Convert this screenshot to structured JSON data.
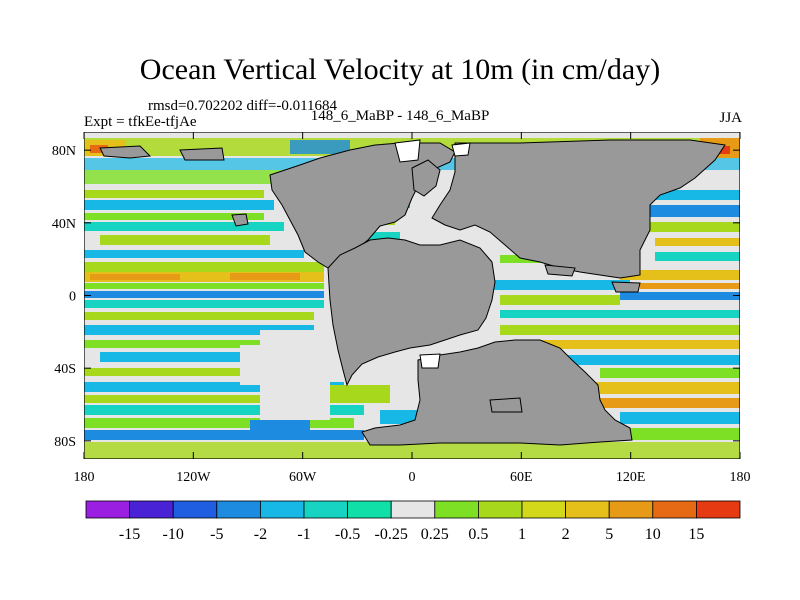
{
  "title": "Ocean Vertical Velocity at 10m (in cm/day)",
  "stats": {
    "rmsd_label": "rmsd=",
    "rmsd": "0.702202",
    "diff_label": "diff=",
    "diff": "-0.011684"
  },
  "experiment": {
    "label": "Expt = tfkEe-tfjAe",
    "comparison": "148_6_MaBP - 148_6_MaBP"
  },
  "season": "JJA",
  "axes": {
    "x_ticks": [
      {
        "lon": -180,
        "label": "180"
      },
      {
        "lon": -120,
        "label": "120W"
      },
      {
        "lon": -60,
        "label": "60W"
      },
      {
        "lon": 0,
        "label": "0"
      },
      {
        "lon": 60,
        "label": "60E"
      },
      {
        "lon": 120,
        "label": "120E"
      },
      {
        "lon": 180,
        "label": "180"
      }
    ],
    "y_ticks": [
      {
        "lat": 80,
        "label": "80N"
      },
      {
        "lat": 40,
        "label": "40N"
      },
      {
        "lat": 0,
        "label": "0"
      },
      {
        "lat": -40,
        "label": "40S"
      },
      {
        "lat": -80,
        "label": "80S"
      }
    ],
    "lon_range": [
      -180,
      180
    ],
    "lat_range": [
      -90,
      90
    ]
  },
  "colorbar": {
    "colors": [
      "#9b1fe0",
      "#4a22d6",
      "#1f5ee0",
      "#1c8be0",
      "#18b8e6",
      "#16d3c2",
      "#10e0a8",
      "#e6e6e6",
      "#7ee024",
      "#a8d81c",
      "#d4d81a",
      "#e6c01a",
      "#e69a16",
      "#e66a14",
      "#e63a12"
    ],
    "labels": [
      "-15",
      "-10",
      "-5",
      "-2",
      "-1",
      "-0.5",
      "-0.25",
      "0.25",
      "0.5",
      "1",
      "2",
      "5",
      "10",
      "15"
    ]
  },
  "map": {
    "land_color": "#999999",
    "ocean_background": "#e6e6e6"
  }
}
